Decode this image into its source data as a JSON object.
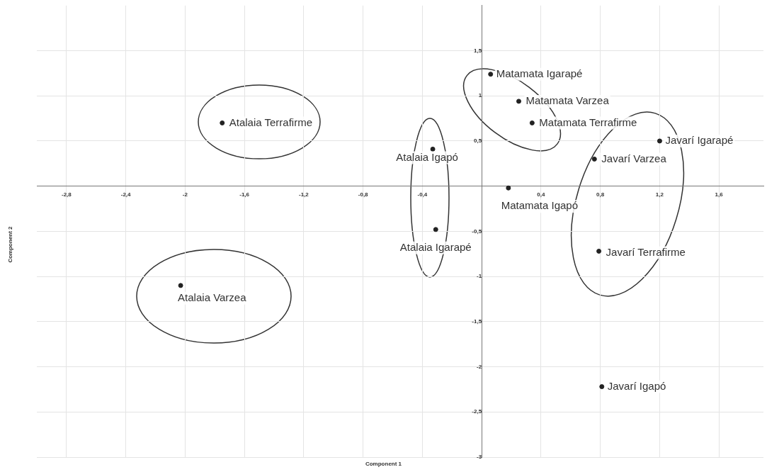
{
  "chart_data": {
    "type": "scatter",
    "xlabel": "Component 1",
    "ylabel": "Component 2",
    "xlim": [
      -3,
      1.9
    ],
    "ylim": [
      -3,
      2
    ],
    "xticks": [
      {
        "value": -2.8,
        "label": "-2,8"
      },
      {
        "value": -2.4,
        "label": "-2,4"
      },
      -2,
      {
        "value": -1.6,
        "label": "-1,6"
      },
      {
        "value": -1.2,
        "label": "-1,2"
      },
      {
        "value": -0.8,
        "label": "-0,8"
      },
      {
        "value": -0.4,
        "label": "-0,4"
      },
      {
        "value": 0.4,
        "label": "0,4"
      },
      {
        "value": 0.8,
        "label": "0,8"
      },
      {
        "value": 1.2,
        "label": "1,2"
      },
      {
        "value": 1.6,
        "label": "1,6"
      }
    ],
    "yticks": [
      {
        "value": 1.5,
        "label": "1,5"
      },
      1,
      {
        "value": 0.5,
        "label": "0,5"
      },
      {
        "value": -0.5,
        "label": "-0,5"
      },
      -1,
      {
        "value": -1.5,
        "label": "-1,5"
      },
      -2,
      {
        "value": -2.5,
        "label": "-2,5"
      },
      -3
    ],
    "series": [
      {
        "color": "#222222",
        "x": [
          -1.75,
          -0.33,
          -0.31,
          -2.03,
          0.06,
          0.25,
          0.34,
          0.18,
          1.2,
          0.76,
          0.79,
          0.81
        ],
        "values": [
          0.7,
          0.41,
          -0.48,
          -1.1,
          1.24,
          0.94,
          0.7,
          -0.02,
          0.5,
          0.3,
          -0.72,
          -2.22
        ]
      }
    ],
    "annotations": [
      {
        "text": "Atalaia Terrafirme",
        "x": -1.75,
        "y": 0.7
      },
      {
        "text": "Atalaia Igapó",
        "x": -0.33,
        "y": 0.41
      },
      {
        "text": "Atalaia Igarapé",
        "x": -0.31,
        "y": -0.48
      },
      {
        "text": "Atalaia Varzea",
        "x": -2.03,
        "y": -1.1
      },
      {
        "text": "Matamata Igarapé",
        "x": 0.06,
        "y": 1.24
      },
      {
        "text": "Matamata Varzea",
        "x": 0.25,
        "y": 0.94
      },
      {
        "text": "Matamata Terrafirme",
        "x": 0.34,
        "y": 0.7
      },
      {
        "text": "Matamata Igapó",
        "x": 0.18,
        "y": -0.02
      },
      {
        "text": "Javarí Igarapé",
        "x": 1.2,
        "y": 0.5
      },
      {
        "text": "Javarí Varzea",
        "x": 0.76,
        "y": 0.3
      },
      {
        "text": "Javarí Terrafirme",
        "x": 0.79,
        "y": -0.72
      },
      {
        "text": "Javarí Igapó",
        "x": 0.81,
        "y": -2.22
      }
    ],
    "grid": true,
    "marker": "circle",
    "legend": false
  }
}
